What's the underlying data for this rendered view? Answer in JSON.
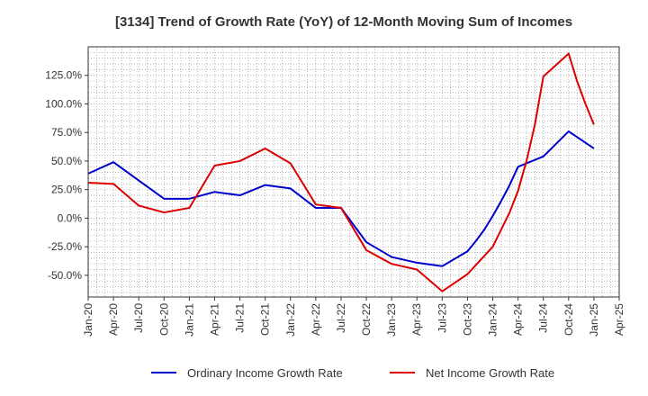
{
  "chart_data": {
    "type": "line",
    "title": "[3134]  Trend of Growth Rate (YoY) of 12-Month Moving Sum of Incomes",
    "xlabel": "",
    "ylabel": "",
    "x": [
      "Jan-20",
      "Apr-20",
      "Jul-20",
      "Oct-20",
      "Jan-21",
      "Apr-21",
      "Jul-21",
      "Oct-21",
      "Jan-22",
      "Apr-22",
      "Jul-22",
      "Oct-22",
      "Jan-23",
      "Apr-23",
      "Jul-23",
      "Oct-23",
      "Jan-24",
      "Apr-24",
      "Jul-24",
      "Oct-24",
      "Jan-25",
      "Apr-25"
    ],
    "x_tick_labels": [
      "Jan-20",
      "Apr-20",
      "Jul-20",
      "Oct-20",
      "Jan-21",
      "Apr-21",
      "Jul-21",
      "Oct-21",
      "Jan-22",
      "Apr-22",
      "Jul-22",
      "Oct-22",
      "Jan-23",
      "Apr-23",
      "Jul-23",
      "Oct-23",
      "Jan-24",
      "Apr-24",
      "Jul-24",
      "Oct-24",
      "Jan-25",
      "Apr-25"
    ],
    "y_ticks": [
      -50,
      -25,
      0,
      25,
      50,
      75,
      100,
      125
    ],
    "y_tick_labels": [
      "-50.0%",
      "-25.0%",
      "0.0%",
      "25.0%",
      "50.0%",
      "75.0%",
      "100.0%",
      "125.0%"
    ],
    "ylim": [
      -69,
      150
    ],
    "grid": true,
    "legend_position": "bottom",
    "series": [
      {
        "name": "Ordinary Income Growth Rate",
        "color": "#0000cc",
        "points": [
          [
            "Jan-20",
            39
          ],
          [
            "Apr-20",
            49
          ],
          [
            "Jul-20",
            33
          ],
          [
            "Oct-20",
            17
          ],
          [
            "Jan-21",
            17
          ],
          [
            "Feb-21",
            19
          ],
          [
            "Apr-21",
            23
          ],
          [
            "Jul-21",
            20
          ],
          [
            "Oct-21",
            29
          ],
          [
            "Jan-22",
            26
          ],
          [
            "Apr-22",
            9
          ],
          [
            "Jul-22",
            9
          ],
          [
            "Oct-22",
            -21
          ],
          [
            "Jan-23",
            -34
          ],
          [
            "Apr-23",
            -39
          ],
          [
            "Jul-23",
            -42
          ],
          [
            "Oct-23",
            -29
          ],
          [
            "Nov-23",
            -20
          ],
          [
            "Dec-23",
            -10
          ],
          [
            "Jan-24",
            2
          ],
          [
            "Feb-24",
            15
          ],
          [
            "Mar-24",
            29
          ],
          [
            "Apr-24",
            45
          ],
          [
            "Jul-24",
            54
          ],
          [
            "Oct-24",
            76
          ],
          [
            "Jan-25",
            61
          ]
        ]
      },
      {
        "name": "Net Income Growth Rate",
        "color": "#dd0000",
        "points": [
          [
            "Jan-20",
            31
          ],
          [
            "Apr-20",
            30
          ],
          [
            "Jul-20",
            11
          ],
          [
            "Oct-20",
            5
          ],
          [
            "Jan-21",
            9
          ],
          [
            "Apr-21",
            46
          ],
          [
            "Jul-21",
            50
          ],
          [
            "Oct-21",
            61
          ],
          [
            "Jan-22",
            48
          ],
          [
            "Apr-22",
            12
          ],
          [
            "Jul-22",
            9
          ],
          [
            "Oct-22",
            -28
          ],
          [
            "Jan-23",
            -40
          ],
          [
            "Apr-23",
            -45
          ],
          [
            "Jul-23",
            -64
          ],
          [
            "Oct-23",
            -49
          ],
          [
            "Jan-24",
            -25
          ],
          [
            "Feb-24",
            -10
          ],
          [
            "Mar-24",
            5
          ],
          [
            "Apr-24",
            24
          ],
          [
            "May-24",
            50
          ],
          [
            "Jun-24",
            82
          ],
          [
            "Jul-24",
            124
          ],
          [
            "Oct-24",
            144
          ],
          [
            "Nov-24",
            120
          ],
          [
            "Dec-24",
            100
          ],
          [
            "Jan-25",
            82
          ]
        ]
      }
    ]
  }
}
